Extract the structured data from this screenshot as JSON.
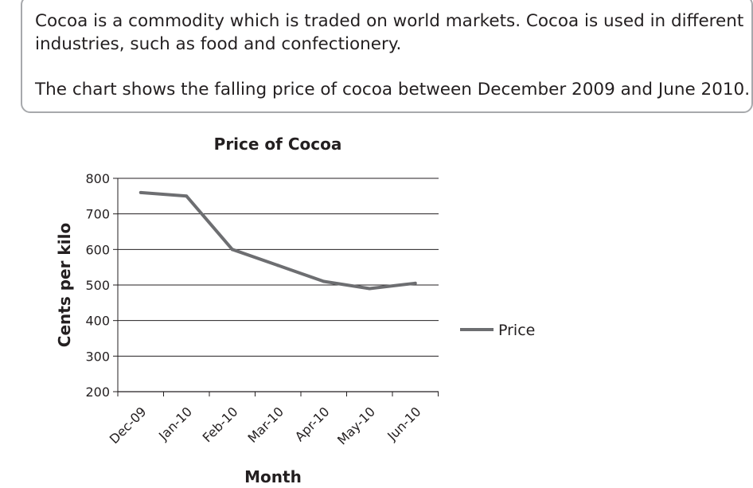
{
  "intro": {
    "line1": "Cocoa is a commodity which is traded on world markets. Cocoa is used in different",
    "line2": "industries, such as food and confectionery.",
    "line3": "The chart shows the falling price of cocoa between December 2009 and June 2010."
  },
  "chart_data": {
    "type": "line",
    "title": "Price of Cocoa",
    "xlabel": "Month",
    "ylabel": "Cents per kilo",
    "categories": [
      "Dec-09",
      "Jan-10",
      "Feb-10",
      "Mar-10",
      "Apr-10",
      "May-10",
      "Jun-10"
    ],
    "series": [
      {
        "name": "Price",
        "values": [
          760,
          750,
          600,
          555,
          510,
          490,
          505
        ],
        "color": "#6d6e71"
      }
    ],
    "ylim": [
      200,
      800
    ],
    "yticks": [
      200,
      300,
      400,
      500,
      600,
      700,
      800
    ],
    "grid": true,
    "legend": "right"
  }
}
